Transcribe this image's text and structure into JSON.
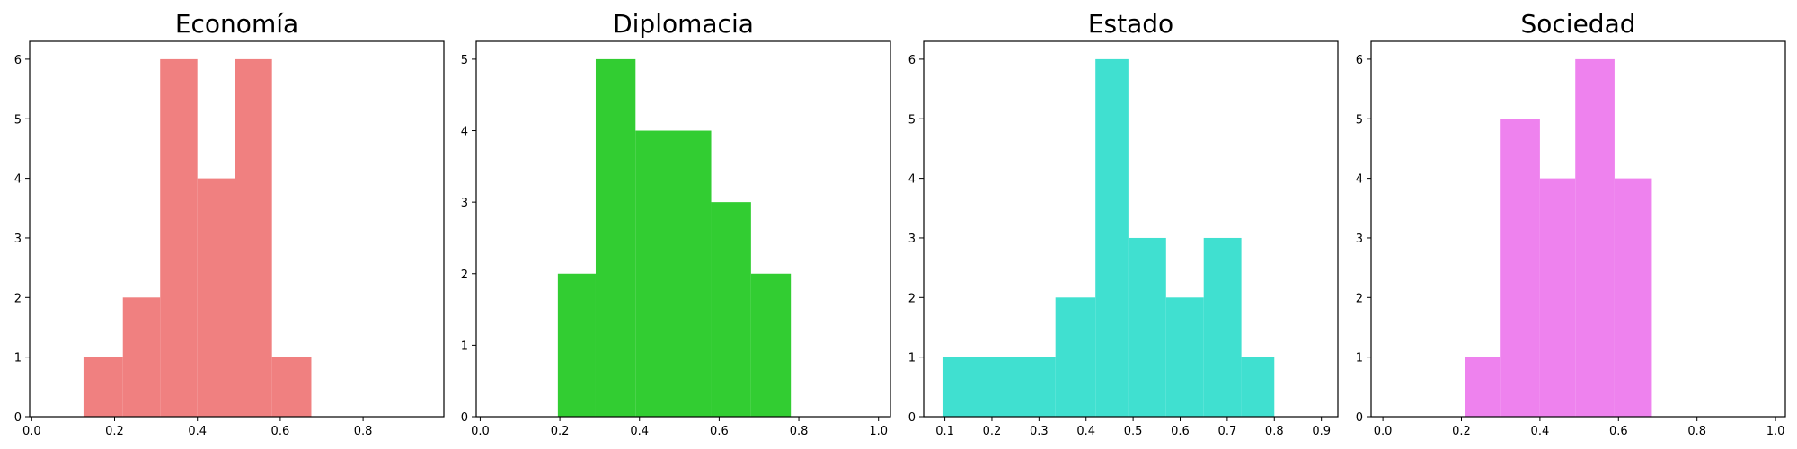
{
  "chart_data": [
    {
      "type": "bar",
      "title": "Economía",
      "color": "#f08080",
      "bins": [
        {
          "x0": 0.125,
          "x1": 0.22,
          "count": 1
        },
        {
          "x0": 0.22,
          "x1": 0.31,
          "count": 2
        },
        {
          "x0": 0.31,
          "x1": 0.4,
          "count": 6
        },
        {
          "x0": 0.4,
          "x1": 0.49,
          "count": 4
        },
        {
          "x0": 0.49,
          "x1": 0.58,
          "count": 6
        },
        {
          "x0": 0.58,
          "x1": 0.675,
          "count": 1
        }
      ],
      "xlim": [
        -0.005,
        0.995
      ],
      "ylim": [
        0,
        6.3
      ],
      "xticks": [
        "0.0",
        "0.2",
        "0.4",
        "0.6",
        "0.8"
      ],
      "yticks": [
        "0",
        "1",
        "2",
        "3",
        "4",
        "5",
        "6"
      ]
    },
    {
      "type": "bar",
      "title": "Diplomacia",
      "color": "#32cd32",
      "bins": [
        {
          "x0": 0.195,
          "x1": 0.29,
          "count": 2
        },
        {
          "x0": 0.29,
          "x1": 0.39,
          "count": 5
        },
        {
          "x0": 0.39,
          "x1": 0.58,
          "count": 4
        },
        {
          "x0": 0.58,
          "x1": 0.68,
          "count": 3
        },
        {
          "x0": 0.68,
          "x1": 0.78,
          "count": 2
        }
      ],
      "xlim": [
        -0.01,
        1.03
      ],
      "ylim": [
        0,
        5.25
      ],
      "xticks": [
        "0.0",
        "0.2",
        "0.4",
        "0.6",
        "0.8",
        "1.0"
      ],
      "yticks": [
        "0",
        "1",
        "2",
        "3",
        "4",
        "5"
      ]
    },
    {
      "type": "bar",
      "title": "Estado",
      "color": "#40e0d0",
      "bins": [
        {
          "x0": 0.095,
          "x1": 0.335,
          "count": 1
        },
        {
          "x0": 0.335,
          "x1": 0.42,
          "count": 2
        },
        {
          "x0": 0.42,
          "x1": 0.49,
          "count": 6
        },
        {
          "x0": 0.49,
          "x1": 0.57,
          "count": 3
        },
        {
          "x0": 0.57,
          "x1": 0.65,
          "count": 2
        },
        {
          "x0": 0.65,
          "x1": 0.73,
          "count": 3
        },
        {
          "x0": 0.73,
          "x1": 0.8,
          "count": 1
        }
      ],
      "xlim": [
        0.055,
        0.935
      ],
      "ylim": [
        0,
        6.3
      ],
      "xticks": [
        "0.1",
        "0.2",
        "0.3",
        "0.4",
        "0.5",
        "0.6",
        "0.7",
        "0.8",
        "0.9"
      ],
      "yticks": [
        "0",
        "1",
        "2",
        "3",
        "4",
        "5",
        "6"
      ]
    },
    {
      "type": "bar",
      "title": "Sociedad",
      "color": "#ee82ee",
      "bins": [
        {
          "x0": 0.21,
          "x1": 0.3,
          "count": 1
        },
        {
          "x0": 0.3,
          "x1": 0.4,
          "count": 5
        },
        {
          "x0": 0.4,
          "x1": 0.49,
          "count": 4
        },
        {
          "x0": 0.49,
          "x1": 0.59,
          "count": 6
        },
        {
          "x0": 0.59,
          "x1": 0.685,
          "count": 4
        }
      ],
      "xlim": [
        -0.03,
        1.025
      ],
      "ylim": [
        0,
        6.3
      ],
      "xticks": [
        "0.0",
        "0.2",
        "0.4",
        "0.6",
        "0.8",
        "1.0"
      ],
      "yticks": [
        "0",
        "1",
        "2",
        "3",
        "4",
        "5",
        "6"
      ]
    }
  ]
}
